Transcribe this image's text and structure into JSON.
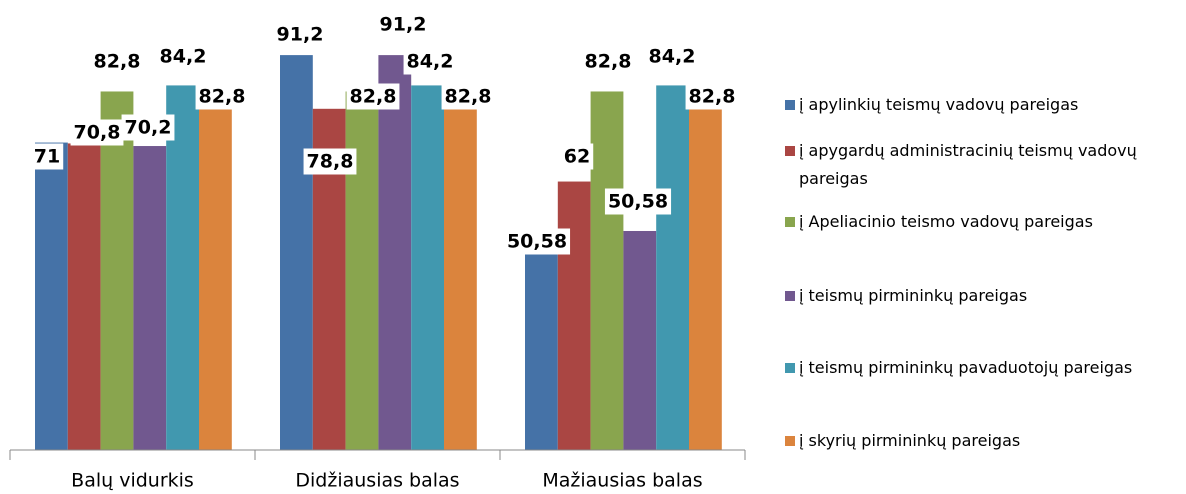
{
  "chart_data": {
    "type": "bar",
    "categories": [
      "Balų vidurkis",
      "Didžiausias balas",
      "Mažiausias balas"
    ],
    "ylim": [
      0,
      100
    ],
    "series": [
      {
        "name": "į apylinkių teismų vadovų pareigas",
        "color": "#4572a7",
        "values": [
          71,
          91.2,
          50.58
        ],
        "value_labels": [
          "71",
          "91,2",
          "50,58"
        ]
      },
      {
        "name": "į apygardų administracinių teismų vadovų pareigas",
        "color": "#aa4643",
        "values": [
          70.8,
          78.8,
          62
        ],
        "value_labels": [
          "70,8",
          "78,8",
          "62"
        ]
      },
      {
        "name": "į Apeliacinio teismo vadovų pareigas",
        "color": "#89a54e",
        "values": [
          82.8,
          82.8,
          82.8
        ],
        "value_labels": [
          "82,8",
          "82,8",
          "82,8"
        ]
      },
      {
        "name": "į teismų pirmininkų pareigas",
        "color": "#71588f",
        "values": [
          70.2,
          91.2,
          50.58
        ],
        "value_labels": [
          "70,2",
          "91,2",
          "50,58"
        ]
      },
      {
        "name": "į teismų pirmininkų pavaduotojų pareigas",
        "color": "#4198af",
        "values": [
          84.2,
          84.2,
          84.2
        ],
        "value_labels": [
          "84,2",
          "84,2",
          "84,2"
        ]
      },
      {
        "name": "į skyrių pirmininkų pareigas",
        "color": "#db843d",
        "values": [
          82.8,
          82.8,
          82.8
        ],
        "value_labels": [
          "82,8",
          "82,8",
          "82,8"
        ]
      }
    ]
  }
}
